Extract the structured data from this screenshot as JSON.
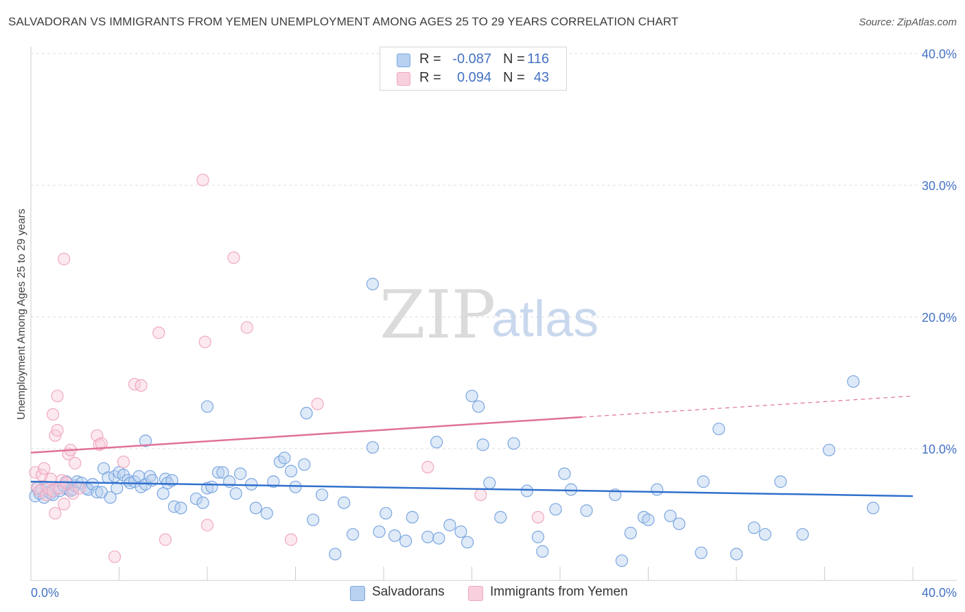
{
  "title": "SALVADORAN VS IMMIGRANTS FROM YEMEN UNEMPLOYMENT AMONG AGES 25 TO 29 YEARS CORRELATION CHART",
  "source": "Source: ZipAtlas.com",
  "watermark": {
    "zip": "ZIP",
    "atlas": "atlas"
  },
  "legend": {
    "rows": [
      {
        "r_label": "R =",
        "r_value": "-0.087",
        "n_label": "N =",
        "n_value": "116"
      },
      {
        "r_label": "R =",
        "r_value": "0.094",
        "n_label": "N =",
        "n_value": "43"
      }
    ]
  },
  "chart_data": {
    "type": "scatter",
    "title": "SALVADORAN VS IMMIGRANTS FROM YEMEN UNEMPLOYMENT AMONG AGES 25 TO 29 YEARS CORRELATION CHART",
    "xlabel": "",
    "ylabel": "Unemployment Among Ages 25 to 29 years",
    "xlim": [
      0,
      40
    ],
    "ylim": [
      0,
      40
    ],
    "x_tick_labels": [
      "0.0%",
      "40.0%"
    ],
    "y_ticks": [
      10,
      20,
      30,
      40
    ],
    "y_tick_labels": [
      "10.0%",
      "20.0%",
      "30.0%",
      "40.0%"
    ],
    "grid": true,
    "legend_position": "bottom",
    "series": [
      {
        "name": "Salvadorans",
        "color": "#7aa6e0",
        "fill": "#b8d1f0",
        "trend_color": "#2f6fcc",
        "r": -0.087,
        "n": 116,
        "trend": {
          "x": [
            0,
            40
          ],
          "y": [
            7.5,
            6.4
          ]
        },
        "points": [
          [
            0.2,
            6.4
          ],
          [
            0.3,
            7.0
          ],
          [
            0.4,
            6.6
          ],
          [
            0.5,
            6.9
          ],
          [
            0.6,
            6.3
          ],
          [
            0.7,
            7.1
          ],
          [
            0.8,
            6.7
          ],
          [
            0.9,
            6.6
          ],
          [
            1.0,
            6.5
          ],
          [
            1.2,
            7.0
          ],
          [
            1.3,
            6.8
          ],
          [
            1.5,
            7.2
          ],
          [
            1.6,
            7.5
          ],
          [
            1.7,
            6.9
          ],
          [
            1.8,
            6.8
          ],
          [
            1.9,
            6.9
          ],
          [
            2.0,
            7.2
          ],
          [
            2.1,
            7.5
          ],
          [
            2.3,
            7.4
          ],
          [
            2.5,
            7.0
          ],
          [
            2.6,
            6.9
          ],
          [
            2.8,
            7.3
          ],
          [
            3.0,
            6.7
          ],
          [
            3.2,
            6.7
          ],
          [
            3.3,
            8.5
          ],
          [
            3.5,
            7.8
          ],
          [
            3.6,
            6.3
          ],
          [
            3.8,
            7.9
          ],
          [
            3.9,
            7.0
          ],
          [
            4.0,
            8.2
          ],
          [
            4.2,
            8.0
          ],
          [
            4.4,
            7.6
          ],
          [
            4.5,
            7.4
          ],
          [
            4.7,
            7.5
          ],
          [
            4.9,
            7.9
          ],
          [
            5.0,
            7.1
          ],
          [
            5.2,
            7.3
          ],
          [
            5.4,
            7.9
          ],
          [
            5.5,
            7.6
          ],
          [
            6.0,
            6.6
          ],
          [
            6.1,
            7.7
          ],
          [
            6.2,
            7.4
          ],
          [
            6.4,
            7.6
          ],
          [
            6.5,
            5.6
          ],
          [
            6.8,
            5.5
          ],
          [
            7.5,
            6.2
          ],
          [
            7.8,
            5.9
          ],
          [
            8.0,
            7.0
          ],
          [
            8.2,
            7.1
          ],
          [
            8.5,
            8.2
          ],
          [
            8.7,
            8.2
          ],
          [
            9.0,
            7.5
          ],
          [
            9.3,
            6.6
          ],
          [
            9.5,
            8.1
          ],
          [
            10.0,
            7.3
          ],
          [
            10.2,
            5.5
          ],
          [
            10.7,
            5.1
          ],
          [
            11.0,
            7.5
          ],
          [
            11.3,
            9.0
          ],
          [
            11.5,
            9.3
          ],
          [
            11.8,
            8.3
          ],
          [
            12.0,
            7.1
          ],
          [
            12.4,
            8.8
          ],
          [
            12.8,
            4.6
          ],
          [
            13.2,
            6.5
          ],
          [
            13.8,
            2.0
          ],
          [
            14.2,
            5.9
          ],
          [
            14.6,
            3.5
          ],
          [
            15.5,
            10.1
          ],
          [
            15.8,
            3.7
          ],
          [
            16.1,
            5.1
          ],
          [
            16.5,
            3.4
          ],
          [
            17.0,
            3.0
          ],
          [
            17.3,
            4.8
          ],
          [
            18.0,
            3.3
          ],
          [
            18.5,
            3.2
          ],
          [
            19.0,
            4.2
          ],
          [
            19.5,
            3.7
          ],
          [
            19.8,
            2.9
          ],
          [
            20.3,
            13.2
          ],
          [
            20.5,
            10.3
          ],
          [
            20.8,
            7.4
          ],
          [
            21.3,
            4.8
          ],
          [
            21.9,
            10.4
          ],
          [
            22.5,
            6.8
          ],
          [
            23.0,
            3.3
          ],
          [
            23.2,
            2.2
          ],
          [
            23.8,
            5.4
          ],
          [
            24.2,
            8.1
          ],
          [
            24.5,
            6.9
          ],
          [
            25.2,
            5.3
          ],
          [
            26.5,
            6.5
          ],
          [
            26.8,
            1.5
          ],
          [
            27.2,
            3.6
          ],
          [
            27.8,
            4.8
          ],
          [
            28.0,
            4.6
          ],
          [
            28.4,
            6.9
          ],
          [
            29.0,
            4.9
          ],
          [
            29.4,
            4.3
          ],
          [
            30.4,
            2.1
          ],
          [
            30.5,
            7.5
          ],
          [
            31.2,
            11.5
          ],
          [
            32.0,
            2.0
          ],
          [
            32.8,
            4.0
          ],
          [
            33.3,
            3.5
          ],
          [
            34.0,
            7.5
          ],
          [
            35.0,
            3.5
          ],
          [
            36.2,
            9.9
          ],
          [
            37.3,
            15.1
          ],
          [
            38.2,
            5.5
          ],
          [
            5.2,
            10.6
          ],
          [
            8.0,
            13.2
          ],
          [
            12.5,
            12.7
          ],
          [
            15.5,
            22.5
          ],
          [
            18.4,
            10.5
          ],
          [
            20.0,
            14.0
          ]
        ]
      },
      {
        "name": "Immigrants from Yemen",
        "color": "#f0a8c0",
        "fill": "#f8cfdc",
        "trend_color": "#e0709a",
        "r": 0.094,
        "n": 43,
        "trend": {
          "x": [
            0,
            25
          ],
          "y": [
            9.7,
            12.4
          ]
        },
        "trend_dashed": {
          "x": [
            25,
            40
          ],
          "y": [
            12.4,
            14.0
          ]
        },
        "points": [
          [
            0.2,
            8.2
          ],
          [
            0.3,
            7.1
          ],
          [
            0.4,
            6.8
          ],
          [
            0.5,
            8.0
          ],
          [
            0.6,
            8.5
          ],
          [
            0.7,
            6.5
          ],
          [
            0.8,
            7.0
          ],
          [
            0.9,
            7.7
          ],
          [
            1.0,
            6.8
          ],
          [
            1.1,
            5.1
          ],
          [
            1.2,
            14.0
          ],
          [
            1.3,
            7.0
          ],
          [
            1.4,
            7.6
          ],
          [
            1.5,
            5.8
          ],
          [
            1.6,
            7.4
          ],
          [
            1.7,
            9.6
          ],
          [
            1.8,
            9.9
          ],
          [
            1.9,
            6.6
          ],
          [
            2.0,
            8.9
          ],
          [
            2.2,
            7.0
          ],
          [
            3.0,
            11.0
          ],
          [
            3.1,
            10.3
          ],
          [
            3.2,
            10.4
          ],
          [
            1.5,
            24.4
          ],
          [
            1.0,
            12.6
          ],
          [
            1.1,
            11.0
          ],
          [
            1.2,
            11.4
          ],
          [
            3.8,
            1.8
          ],
          [
            4.7,
            14.9
          ],
          [
            5.0,
            14.8
          ],
          [
            5.8,
            18.8
          ],
          [
            6.1,
            3.1
          ],
          [
            7.8,
            30.4
          ],
          [
            7.9,
            18.1
          ],
          [
            8.0,
            4.2
          ],
          [
            9.2,
            24.5
          ],
          [
            9.8,
            19.2
          ],
          [
            11.8,
            3.1
          ],
          [
            13.0,
            13.4
          ],
          [
            18.0,
            8.6
          ],
          [
            20.4,
            6.5
          ],
          [
            23.0,
            4.8
          ],
          [
            4.2,
            9.0
          ]
        ]
      }
    ]
  },
  "bottom_legend": [
    {
      "label": "Salvadorans"
    },
    {
      "label": "Immigrants from Yemen"
    }
  ]
}
